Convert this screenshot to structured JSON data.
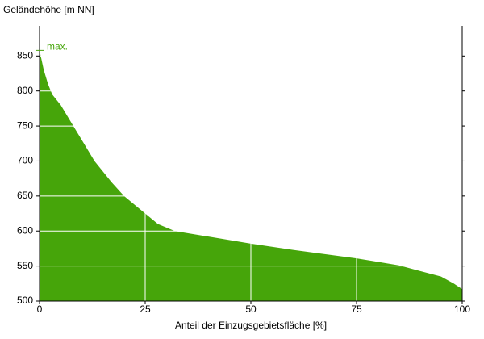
{
  "chart_data": {
    "type": "area",
    "y_label": "Geländehöhe [m NN]",
    "x_label": "Anteil der Einzugsgebietsfläche [%]",
    "x": [
      0,
      1,
      2,
      3,
      5,
      8,
      10,
      13,
      17,
      20,
      25,
      28,
      32,
      40,
      50,
      60,
      70,
      75,
      80,
      85,
      90,
      95,
      98,
      100
    ],
    "values": [
      858,
      830,
      810,
      795,
      780,
      750,
      730,
      700,
      670,
      650,
      625,
      610,
      600,
      592,
      582,
      573,
      565,
      561,
      556,
      551,
      543,
      535,
      525,
      517
    ],
    "color": "#46a50a",
    "xlim": [
      0,
      100
    ],
    "xticks": [
      0,
      25,
      50,
      75,
      100
    ],
    "ylim": [
      500,
      893
    ],
    "yticks": [
      500,
      550,
      600,
      650,
      700,
      750,
      800,
      850
    ],
    "grid": true,
    "grid_color": "#ffffff",
    "annotation": {
      "label": "max.",
      "value": 858
    }
  }
}
